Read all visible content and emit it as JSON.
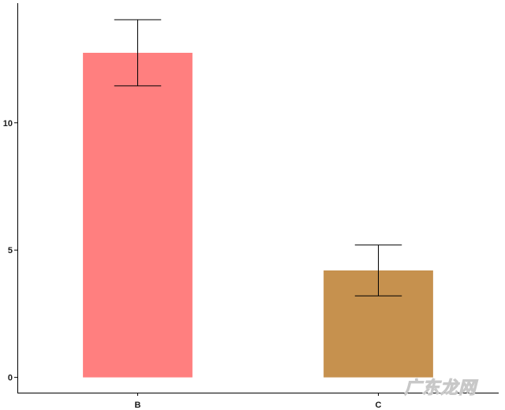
{
  "chart_data": {
    "type": "bar",
    "title": "",
    "xlabel": "",
    "ylabel": "",
    "categories": [
      "B",
      "C"
    ],
    "values": [
      12.75,
      4.2
    ],
    "error_upper": [
      14.05,
      5.2
    ],
    "error_lower": [
      11.45,
      3.2
    ],
    "colors": [
      "#ff7f7f",
      "#c6914e"
    ],
    "ylim": [
      -0.6,
      14.7
    ],
    "yticks": [
      0,
      5,
      10
    ],
    "ytick_labels": [
      "0",
      "5",
      "10"
    ],
    "grid": false,
    "legend": "none"
  },
  "watermark": {
    "text": "广东龙网"
  }
}
